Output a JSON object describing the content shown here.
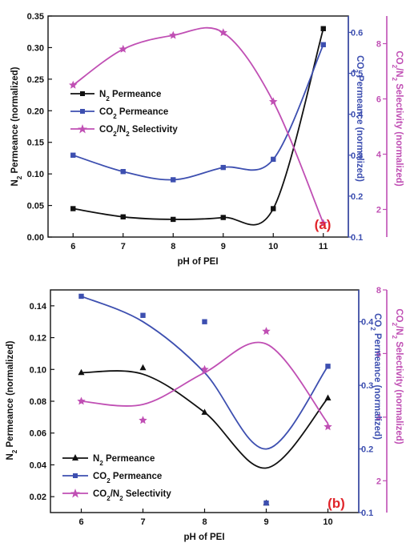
{
  "colors": {
    "n2": "#111111",
    "co2": "#3d4fb0",
    "sel": "#c04fb4",
    "panel_label": "#e0242a"
  },
  "chart_data": [
    {
      "type": "line",
      "panel_label": "(a)",
      "xlabel": "pH of PEI",
      "x": [
        6,
        7,
        8,
        9,
        10,
        11
      ],
      "xlim": [
        5.5,
        11.5
      ],
      "x_ticks": [
        "6",
        "7",
        "8",
        "9",
        "10",
        "11"
      ],
      "axes": {
        "left": {
          "label": "N2 Permeance (normalized)",
          "ylim": [
            0,
            0.35
          ],
          "ticks": [
            "0.00",
            "0.05",
            "0.10",
            "0.15",
            "0.20",
            "0.25",
            "0.30",
            "0.35"
          ]
        },
        "right1": {
          "label": "CO2 Permeance (normalized)",
          "ylim": [
            0.1,
            0.64
          ],
          "ticks": [
            "0.1",
            "0.2",
            "0.3",
            "0.4",
            "0.5",
            "0.6"
          ]
        },
        "right2": {
          "label": "CO2/N2 Selectivity (normalized)",
          "ylim": [
            1,
            9
          ],
          "ticks": [
            "2",
            "4",
            "6",
            "8"
          ]
        }
      },
      "legend_position": "left",
      "series": [
        {
          "name": "N2 Permeance",
          "axis": "left",
          "marker": "square",
          "color": "#111111",
          "values": [
            0.045,
            0.032,
            0.028,
            0.031,
            0.045,
            0.33
          ]
        },
        {
          "name": "CO2 Permeance",
          "axis": "right1",
          "marker": "square",
          "color": "#3d4fb0",
          "values": [
            0.3,
            0.26,
            0.24,
            0.27,
            0.29,
            0.57
          ]
        },
        {
          "name": "CO2/N2 Selectivity",
          "axis": "right2",
          "marker": "star",
          "color": "#c04fb4",
          "values": [
            6.5,
            7.8,
            8.3,
            8.4,
            5.9,
            1.5
          ]
        }
      ]
    },
    {
      "type": "line",
      "panel_label": "(b)",
      "xlabel": "pH of PEI",
      "x": [
        6,
        7,
        8,
        9,
        10
      ],
      "xlim": [
        5.5,
        10.5
      ],
      "x_ticks": [
        "6",
        "7",
        "8",
        "9",
        "10"
      ],
      "axes": {
        "left": {
          "label": "N2 Permeance (normalized)",
          "ylim": [
            0.01,
            0.15
          ],
          "ticks": [
            "0.02",
            "0.04",
            "0.06",
            "0.08",
            "0.10",
            "0.12",
            "0.14"
          ]
        },
        "right1": {
          "label": "CO2 Permeance (normalized)",
          "ylim": [
            0.1,
            0.45
          ],
          "ticks": [
            "0.1",
            "0.2",
            "0.3",
            "0.4"
          ]
        },
        "right2": {
          "label": "CO2/N2 Selectivity (normalized)",
          "ylim": [
            1,
            8
          ],
          "ticks": [
            "2",
            "4",
            "6",
            "8"
          ]
        }
      },
      "legend_position": "bottom-left",
      "series": [
        {
          "name": "N2 Permeance",
          "axis": "left",
          "marker": "triangle",
          "color": "#111111",
          "values": [
            0.098,
            0.101,
            0.073,
            0.016,
            0.082
          ]
        },
        {
          "name": "CO2 Permeance",
          "axis": "right1",
          "marker": "square",
          "color": "#3d4fb0",
          "values": [
            0.44,
            0.41,
            0.4,
            0.115,
            0.33
          ]
        },
        {
          "name": "CO2/N2 Selectivity",
          "axis": "right2",
          "marker": "star",
          "color": "#c04fb4",
          "values": [
            4.5,
            3.9,
            5.5,
            6.7,
            3.7
          ]
        }
      ],
      "fit_curves": {
        "N2 Permeance": [
          0.098,
          0.097,
          0.073,
          0.038,
          0.082
        ],
        "CO2 Permeance": [
          0.44,
          0.4,
          0.32,
          0.2,
          0.33
        ],
        "CO2/N2 Selectivity": [
          4.5,
          4.4,
          5.4,
          6.3,
          3.8
        ]
      }
    }
  ]
}
